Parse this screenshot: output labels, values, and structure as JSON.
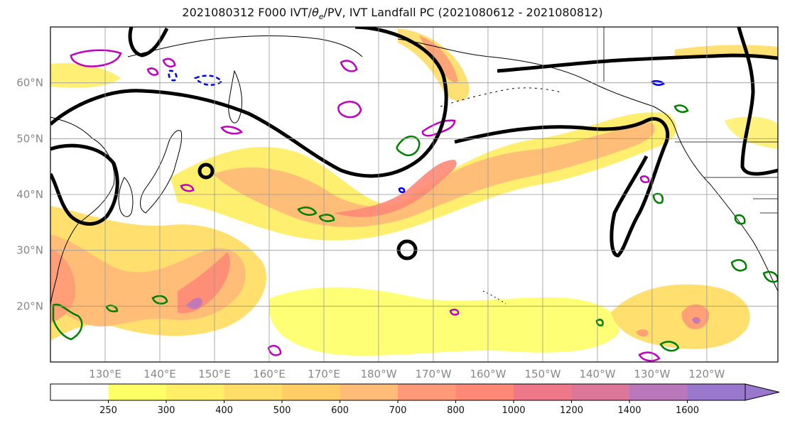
{
  "title": {
    "prefix": "2021080312 F000 IVT/",
    "theta": "θ",
    "subscript": "e",
    "suffix": "/PV, IVT Landfall PC (2021080612 - 2021080812)"
  },
  "map": {
    "projection": "equirectangular",
    "lon_range": [
      120,
      253
    ],
    "lat_range": [
      10,
      70
    ],
    "grid": true,
    "lon_ticks": [
      "130°E",
      "140°E",
      "150°E",
      "160°E",
      "170°E",
      "180°W",
      "170°W",
      "160°W",
      "150°W",
      "140°W",
      "130°W",
      "120°W"
    ],
    "lat_ticks": [
      "20°N",
      "30°N",
      "40°N",
      "50°N",
      "60°N"
    ],
    "colors": {
      "land_outline": "#000000",
      "theta_e_contour": "#000000",
      "pv_contour_green": "#008000",
      "pv_contour_magenta": "#c000c0",
      "pv_contour_blue": "#0000ee"
    }
  },
  "colorbar": {
    "levels": [
      "250",
      "300",
      "400",
      "500",
      "600",
      "700",
      "800",
      "1000",
      "1200",
      "1400",
      "1600"
    ],
    "colors": [
      "#ffffff",
      "#ffff66",
      "#ffee66",
      "#ffdd66",
      "#ffcc66",
      "#ffbb77",
      "#ff9977",
      "#ff8877",
      "#ee7788",
      "#dd7799",
      "#bb77bb",
      "#9977cc"
    ],
    "extend": "max"
  }
}
